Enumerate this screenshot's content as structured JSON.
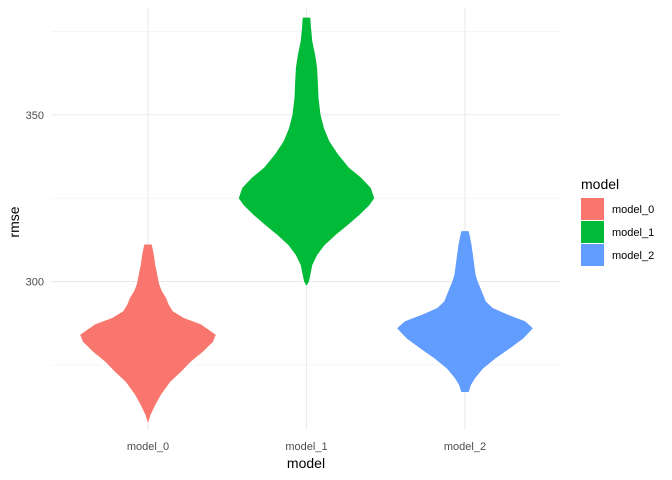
{
  "chart_data": {
    "type": "violin",
    "xlabel": "model",
    "ylabel": "rmse",
    "categories": [
      "model_0",
      "model_1",
      "model_2"
    ],
    "ylim": [
      255.5,
      382
    ],
    "yticks": [
      300,
      350
    ],
    "grid": true,
    "legend": {
      "title": "model",
      "position": "right"
    },
    "series": [
      {
        "name": "model_0",
        "color": "#F8766D",
        "ymin": 258,
        "ymax": 311,
        "density": [
          [
            258,
            0.0
          ],
          [
            260,
            0.03
          ],
          [
            263,
            0.1
          ],
          [
            266,
            0.18
          ],
          [
            270,
            0.32
          ],
          [
            273,
            0.48
          ],
          [
            276,
            0.62
          ],
          [
            279,
            0.8
          ],
          [
            282,
            0.95
          ],
          [
            284,
            0.99
          ],
          [
            287,
            0.78
          ],
          [
            289,
            0.52
          ],
          [
            291,
            0.36
          ],
          [
            293,
            0.3
          ],
          [
            295,
            0.26
          ],
          [
            297,
            0.2
          ],
          [
            299,
            0.16
          ],
          [
            301,
            0.14
          ],
          [
            303,
            0.12
          ],
          [
            305,
            0.1
          ],
          [
            308,
            0.08
          ],
          [
            311,
            0.05
          ]
        ]
      },
      {
        "name": "model_1",
        "color": "#00BA38",
        "ymin": 299,
        "ymax": 379,
        "density": [
          [
            299,
            0.0
          ],
          [
            300,
            0.03
          ],
          [
            302,
            0.05
          ],
          [
            305,
            0.08
          ],
          [
            308,
            0.15
          ],
          [
            311,
            0.26
          ],
          [
            314,
            0.42
          ],
          [
            317,
            0.6
          ],
          [
            320,
            0.77
          ],
          [
            323,
            0.92
          ],
          [
            325,
            0.99
          ],
          [
            328,
            0.94
          ],
          [
            331,
            0.8
          ],
          [
            334,
            0.62
          ],
          [
            338,
            0.46
          ],
          [
            342,
            0.33
          ],
          [
            346,
            0.25
          ],
          [
            350,
            0.2
          ],
          [
            355,
            0.17
          ],
          [
            360,
            0.16
          ],
          [
            364,
            0.15
          ],
          [
            368,
            0.12
          ],
          [
            372,
            0.08
          ],
          [
            376,
            0.06
          ],
          [
            379,
            0.05
          ]
        ]
      },
      {
        "name": "model_2",
        "color": "#619CFF",
        "ymin": 267,
        "ymax": 315,
        "density": [
          [
            267,
            0.05
          ],
          [
            269,
            0.08
          ],
          [
            271,
            0.14
          ],
          [
            274,
            0.26
          ],
          [
            277,
            0.44
          ],
          [
            280,
            0.65
          ],
          [
            283,
            0.85
          ],
          [
            286,
            0.99
          ],
          [
            288,
            0.88
          ],
          [
            290,
            0.62
          ],
          [
            292,
            0.4
          ],
          [
            294,
            0.3
          ],
          [
            296,
            0.26
          ],
          [
            298,
            0.22
          ],
          [
            300,
            0.18
          ],
          [
            302,
            0.15
          ],
          [
            305,
            0.13
          ],
          [
            308,
            0.11
          ],
          [
            311,
            0.09
          ],
          [
            313,
            0.07
          ],
          [
            315,
            0.05
          ]
        ]
      }
    ]
  }
}
